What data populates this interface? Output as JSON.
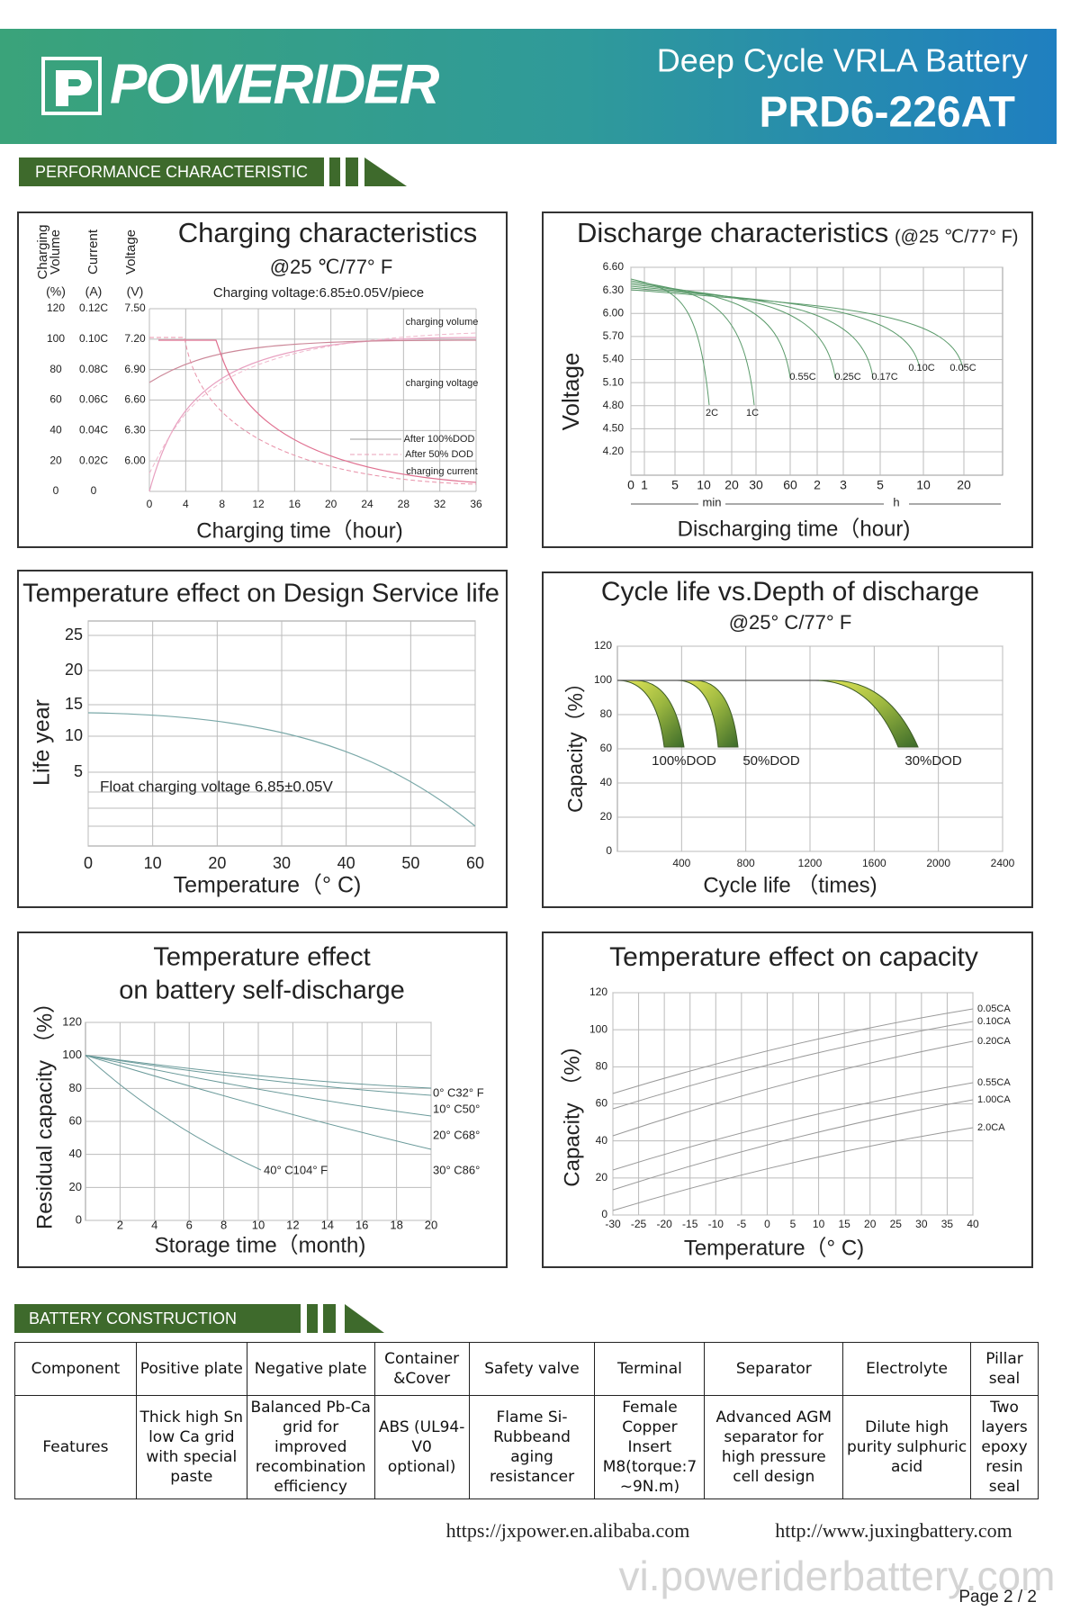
{
  "header": {
    "brand": "POWERIDER",
    "product": "Deep Cycle VRLA Battery",
    "model": "PRD6-226AT"
  },
  "sections": {
    "performance": "PERFORMANCE    CHARACTERISTIC",
    "construction": "BATTERY    CONSTRUCTION"
  },
  "charts": [
    {
      "title": "Charging characteristics",
      "subtitle": "@25 ℃/77° F",
      "note": "Charging voltage:6.85±0.05V/piece",
      "ycols": [
        {
          "name_lines": [
            "Charging",
            "Volume"
          ],
          "unit": "(%)"
        },
        {
          "name_lines": [
            "Current"
          ],
          "unit": "(A)"
        },
        {
          "name_lines": [
            "Voltage"
          ],
          "unit": "(V)"
        }
      ],
      "yticks_volume": [
        "120",
        "100",
        "80",
        "60",
        "40",
        "20",
        "0"
      ],
      "yticks_current": [
        "0.12C",
        "0.10C",
        "0.08C",
        "0.06C",
        "0.04C",
        "0.02C",
        "0"
      ],
      "yticks_voltage": [
        "7.50",
        "7.20",
        "6.90",
        "6.60",
        "6.30",
        "6.00"
      ],
      "xticks": [
        "0",
        "4",
        "8",
        "12",
        "16",
        "20",
        "24",
        "28",
        "32",
        "36"
      ],
      "xlabel": "Charging time（hour)",
      "annotations": [
        "charging volume",
        "charging voltage",
        "After 100%DOD",
        "After  50% DOD",
        "charging current"
      ]
    },
    {
      "title": "Discharge characteristics",
      "subtitle": "(@25 ℃/77° F)",
      "ylabel": "Voltage",
      "yticks": [
        "6.60",
        "6.30",
        "6.00",
        "5.70",
        "5.40",
        "5.10",
        "4.80",
        "4.50",
        "4.20"
      ],
      "xticks": [
        "0",
        "1",
        "5",
        "10",
        "20",
        "30",
        "60",
        "2",
        "3",
        "5",
        "10",
        "20"
      ],
      "xunits": [
        "min",
        "h"
      ],
      "xlabel": "Discharging time（hour)",
      "annotations": [
        "2C",
        "1C",
        "0.55C",
        "0.25C",
        "0.17C",
        "0.10C",
        "0.05C"
      ]
    },
    {
      "title": "Temperature effect on Design Service life",
      "ylabel": "Life year",
      "yticks": [
        "25",
        "20",
        "15",
        "10",
        "5"
      ],
      "xticks": [
        "0",
        "10",
        "20",
        "30",
        "40",
        "50",
        "60"
      ],
      "xlabel": "Temperature（° C)",
      "note": "Float charging voltage  6.85±0.05V"
    },
    {
      "title": "Cycle life vs.Depth of discharge",
      "subtitle": "@25° C/77° F",
      "ylabel": "Capacity（%）",
      "yticks": [
        "120",
        "100",
        "80",
        "60",
        "40",
        "20",
        "0"
      ],
      "xticks": [
        "400",
        "800",
        "1200",
        "1600",
        "2000",
        "2400"
      ],
      "xlabel": "Cycle life （times)",
      "annotations": [
        "100%DOD",
        "50%DOD",
        "30%DOD"
      ]
    },
    {
      "title_lines": [
        "Temperature effect",
        "on battery self-discharge"
      ],
      "ylabel": "Residual capacity （%）",
      "yticks": [
        "120",
        "100",
        "80",
        "60",
        "40",
        "20",
        "0"
      ],
      "xticks": [
        "2",
        "4",
        "6",
        "8",
        "10",
        "12",
        "14",
        "16",
        "18",
        "20"
      ],
      "xlabel": "Storage time（month)",
      "annotations": [
        "0° C32° F",
        "10° C50°",
        "20° C68°",
        "30° C86°",
        "40° C104° F"
      ]
    },
    {
      "title": "Temperature effect on capacity",
      "ylabel": "Capacity （%）",
      "yticks": [
        "120",
        "100",
        "80",
        "60",
        "40",
        "20",
        "0"
      ],
      "xticks": [
        "-30",
        "-25",
        "-20",
        "-15",
        "-10",
        "-5",
        "0",
        "5",
        "10",
        "15",
        "20",
        "25",
        "30",
        "35",
        "40"
      ],
      "xlabel": "Temperature（° C)",
      "annotations": [
        "0.05CA",
        "0.10CA",
        "0.20CA",
        "0.55CA",
        "1.00CA",
        "2.0CA"
      ]
    }
  ],
  "table": {
    "headers": [
      "Component",
      "Positive plate",
      "Negative plate",
      "Container &Cover",
      "Safety valve",
      "Terminal",
      "Separator",
      "Electrolyte",
      "Pillar seal"
    ],
    "features": [
      "Features",
      "Thick high Sn low Ca grid with special paste",
      "Balanced Pb-Ca grid for improved recombination efficiency",
      "ABS (UL94-V0 optional)",
      "Flame Si-Rubbeand aging resistancer",
      "Female Copper Insert M8(torque:7 ~9N.m)",
      "Advanced AGM separator for high pressure cell design",
      "Dilute high purity sulphuric acid",
      "Two layers epoxy resin seal"
    ]
  },
  "footer": {
    "url1": "https://jxpower.en.alibaba.com",
    "url2": "http://www.juxingbattery.com",
    "watermark": "vi.poweriderbattery.com",
    "page": "Page   2 / 2"
  }
}
